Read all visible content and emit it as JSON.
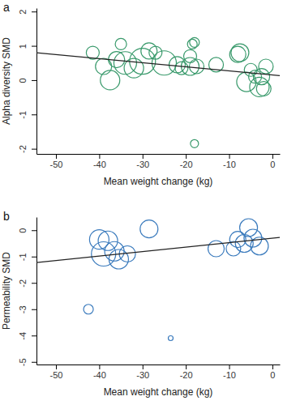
{
  "chart_data": [
    {
      "type": "scatter",
      "title": "a",
      "x_label": "Mean weight change (kg)",
      "y_label": "Alpha diversity SMD",
      "color": "#3a9a6c",
      "marker": "open-circle",
      "x": [
        -41.5,
        -39,
        -37.5,
        -36,
        -35,
        -34,
        -32,
        -30,
        -28.5,
        -27,
        -25,
        -22,
        -21,
        -19,
        -19,
        -18.5,
        -18,
        -18,
        -17.5,
        -13,
        -8,
        -7.5,
        -6,
        -5,
        -4,
        -3,
        -2.5,
        -1.5,
        -2
      ],
      "values": [
        0.8,
        0.4,
        0.0,
        0.6,
        1.05,
        0.5,
        0.35,
        0.55,
        0.85,
        0.8,
        0.5,
        0.45,
        0.35,
        0.4,
        0.7,
        1.05,
        1.1,
        -1.85,
        0.4,
        0.45,
        0.75,
        0.8,
        -0.05,
        0.3,
        0.1,
        -0.2,
        0.1,
        0.4,
        -0.25
      ],
      "sizes": [
        8,
        10,
        12,
        10,
        7,
        14,
        12,
        16,
        10,
        8,
        15,
        10,
        8,
        11,
        8,
        6,
        6,
        5,
        9,
        9,
        10,
        11,
        12,
        8,
        8,
        12,
        10,
        9,
        9
      ],
      "trend": {
        "x": [
          -54.5,
          1.7
        ],
        "y": [
          0.8,
          0.13
        ]
      },
      "xlim": [
        -54.5,
        1.7
      ],
      "xticks": [
        -50,
        -40,
        -30,
        -20,
        -10,
        0
      ],
      "ylim": [
        -2.15,
        2.1
      ],
      "yticks": [
        -2,
        -1,
        0,
        1,
        2
      ],
      "grid": false
    },
    {
      "type": "scatter",
      "title": "b",
      "x_label": "Mean weight change (kg)",
      "y_label": "Permeability SMD",
      "color": "#3b7bbd",
      "marker": "open-circle",
      "x": [
        -42.5,
        -40,
        -39,
        -38,
        -36.5,
        -35.5,
        -33.5,
        -28.5,
        -23.5,
        -13,
        -9,
        -8,
        -6.5,
        -5.5,
        -4.5,
        -3
      ],
      "values": [
        -3.0,
        -0.35,
        -0.9,
        -0.4,
        -0.8,
        -1.1,
        -0.9,
        0.05,
        -4.1,
        -0.7,
        -0.7,
        -0.35,
        -0.5,
        0.1,
        -0.3,
        -0.6
      ],
      "sizes": [
        6,
        12,
        15,
        12,
        12,
        12,
        10,
        11,
        3,
        10,
        9,
        10,
        11,
        11,
        11,
        11
      ],
      "trend": {
        "x": [
          -54.5,
          1.7
        ],
        "y": [
          -1.23,
          -0.27
        ]
      },
      "xlim": [
        -54.5,
        1.7
      ],
      "xticks": [
        -50,
        -40,
        -30,
        -20,
        -10,
        0
      ],
      "ylim": [
        -5.1,
        0.5
      ],
      "yticks": [
        -5,
        -4,
        -3,
        -2,
        -1,
        0
      ],
      "grid": false
    }
  ]
}
